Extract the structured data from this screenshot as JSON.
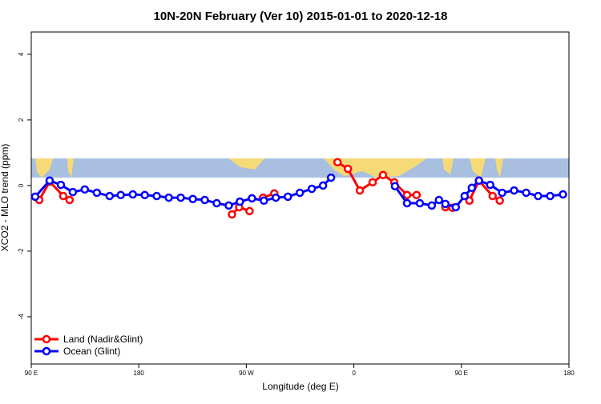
{
  "chart_data": {
    "type": "line",
    "title": "10N-20N February (Ver 10)   2015-01-01 to 2020-12-18",
    "x_label": "Longitude (deg E)",
    "y_label": "XCO2 - MLO trend (ppm)",
    "xlim": [
      90,
      540
    ],
    "xticks": [
      {
        "value": 90,
        "label": "90 E"
      },
      {
        "value": 180,
        "label": "180"
      },
      {
        "value": 270,
        "label": "90 W"
      },
      {
        "value": 360,
        "label": "0"
      },
      {
        "value": 450,
        "label": "90 E"
      },
      {
        "value": 540,
        "label": "180"
      }
    ],
    "ylim": [
      -5.44,
      4.68
    ],
    "yticks": [
      -4,
      -2,
      0,
      2,
      4
    ],
    "legend": "bottomleft",
    "series": [
      {
        "name": "Land (Nadir&Glint)",
        "color": "#ff0000",
        "x": [
          96.7,
          105.4,
          116.8,
          122.1,
          null,
          258.0,
          264.0,
          272.7,
          null,
          284.0,
          293.4,
          null,
          346.3,
          355.0,
          365.0,
          375.7,
          384.4,
          393.8,
          404.5,
          412.5,
          null,
          436.6,
          442.6,
          null,
          456.7,
          464.7,
          476.1,
          482.1
        ],
        "values": [
          -0.44,
          0.12,
          -0.32,
          -0.44,
          null,
          -0.88,
          -0.66,
          -0.78,
          null,
          -0.37,
          -0.24,
          null,
          0.71,
          0.51,
          -0.15,
          0.1,
          0.32,
          0.1,
          -0.29,
          -0.29,
          null,
          -0.66,
          -0.68,
          null,
          -0.46,
          0.15,
          -0.32,
          -0.46
        ]
      },
      {
        "name": "Ocean (Glint)",
        "color": "#0000ff",
        "x": [
          93.3,
          105.4,
          114.8,
          124.8,
          134.8,
          144.9,
          155.6,
          164.9,
          175.0,
          185.0,
          195.0,
          205.1,
          215.1,
          225.2,
          235.2,
          245.2,
          255.3,
          264.6,
          274.7,
          284.7,
          294.7,
          304.8,
          314.8,
          324.8,
          334.2,
          340.9,
          null,
          394.4,
          404.5,
          415.2,
          425.2,
          431.2,
          436.6,
          445.3,
          452.7,
          458.7,
          464.7,
          474.1,
          484.1,
          494.1,
          504.2,
          514.2,
          524.3,
          535.0
        ],
        "values": [
          -0.34,
          0.15,
          0.02,
          -0.2,
          -0.12,
          -0.22,
          -0.32,
          -0.29,
          -0.27,
          -0.29,
          -0.32,
          -0.37,
          -0.37,
          -0.41,
          -0.44,
          -0.54,
          -0.61,
          -0.49,
          -0.39,
          -0.46,
          -0.37,
          -0.34,
          -0.22,
          -0.1,
          0.0,
          0.24,
          null,
          -0.02,
          -0.54,
          -0.54,
          -0.61,
          -0.44,
          -0.56,
          -0.66,
          -0.32,
          -0.07,
          0.15,
          0.02,
          -0.22,
          -0.15,
          -0.22,
          -0.32,
          -0.32,
          -0.27
        ]
      }
    ]
  }
}
